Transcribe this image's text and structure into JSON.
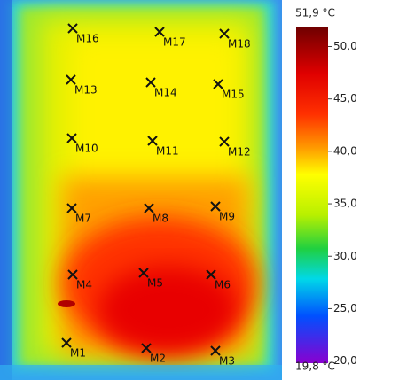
{
  "image": {
    "markers": [
      "M1",
      "M2",
      "M3",
      "M4",
      "M5",
      "M6",
      "M7",
      "M8",
      "M9",
      "M10",
      "M11",
      "M12",
      "M13",
      "M14",
      "M15",
      "M16",
      "M17",
      "M18"
    ]
  },
  "colorbar": {
    "max": {
      "value": 51.9,
      "label": "51,9 °C"
    },
    "min": {
      "value": 19.8,
      "label": "19,8 °C"
    },
    "ticks": [
      {
        "value": 50,
        "label": "50,0"
      },
      {
        "value": 45,
        "label": "45,0"
      },
      {
        "value": 40,
        "label": "40,0"
      },
      {
        "value": 35,
        "label": "35,0"
      },
      {
        "value": 30,
        "label": "30,0"
      },
      {
        "value": 25,
        "label": "25,0"
      },
      {
        "value": 20,
        "label": "20,0"
      }
    ]
  }
}
